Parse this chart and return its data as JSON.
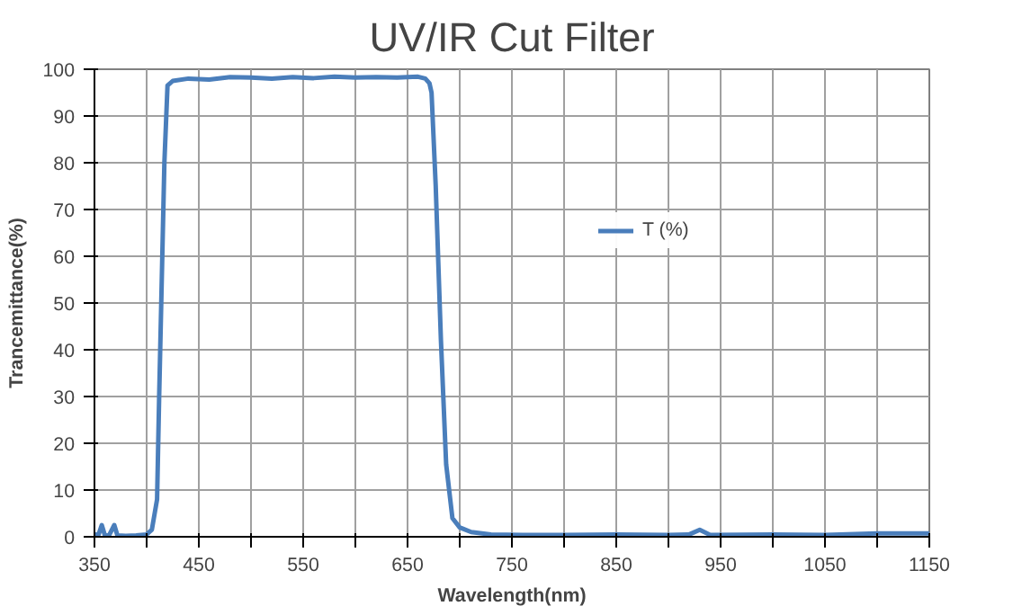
{
  "chart_data": {
    "type": "line",
    "title": "UV/IR Cut Filter",
    "xlabel": "Wavelength(nm)",
    "ylabel": "Trancemittance(%)",
    "xlim": [
      350,
      1150
    ],
    "ylim": [
      0,
      100
    ],
    "xticks": [
      350,
      {
        "value": 400,
        "label": null
      },
      450,
      {
        "value": 500,
        "label": null
      },
      550,
      {
        "value": 600,
        "label": null
      },
      650,
      {
        "value": 700,
        "label": null
      },
      750,
      {
        "value": 800,
        "label": null
      },
      850,
      {
        "value": 900,
        "label": null
      },
      950,
      {
        "value": 1000,
        "label": null
      },
      1050,
      {
        "value": 1100,
        "label": null
      },
      1150
    ],
    "yticks": [
      0,
      10,
      20,
      30,
      40,
      50,
      60,
      70,
      80,
      90,
      100
    ],
    "grid": true,
    "legend": "right",
    "series": [
      {
        "name": "T (%)",
        "color": "#4a7ebb",
        "x": [
          350,
          354,
          357,
          360,
          364,
          369,
          372,
          380,
          390,
          400,
          405,
          410,
          412,
          414,
          417,
          420,
          425,
          440,
          460,
          480,
          500,
          520,
          540,
          560,
          580,
          600,
          620,
          640,
          660,
          667,
          671,
          673,
          677,
          682,
          687,
          693,
          700,
          711,
          730,
          760,
          800,
          850,
          900,
          920,
          930,
          940,
          1000,
          1050,
          1100,
          1150
        ],
        "values": [
          0.5,
          0.5,
          2.5,
          0.3,
          0.3,
          2.5,
          0.3,
          0.2,
          0.3,
          0.5,
          1.5,
          8,
          30,
          50,
          80,
          96.5,
          97.5,
          98,
          97.8,
          98.3,
          98.2,
          98,
          98.3,
          98.1,
          98.4,
          98.2,
          98.3,
          98.2,
          98.4,
          98,
          97,
          95,
          75,
          42,
          15.5,
          4,
          2,
          1,
          0.5,
          0.4,
          0.4,
          0.5,
          0.4,
          0.5,
          1.5,
          0.4,
          0.5,
          0.4,
          0.7,
          0.7
        ]
      }
    ]
  }
}
